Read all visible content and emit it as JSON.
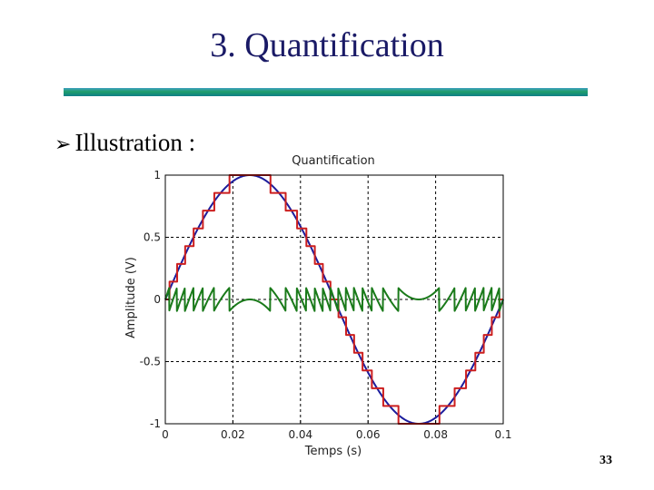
{
  "slide": {
    "title": "3. Quantification",
    "bullet_label": "Illustration :",
    "bullet_icon": "arrow-bullet-icon",
    "page_number": "33"
  },
  "chart_data": {
    "type": "line",
    "title": "Quantification",
    "xlabel": "Temps (s)",
    "ylabel": "Amplitude (V)",
    "xlim": [
      0,
      0.1
    ],
    "ylim": [
      -1,
      1
    ],
    "x_ticks": [
      0,
      0.02,
      0.04,
      0.06,
      0.08,
      0.1
    ],
    "x_tick_labels": [
      "0",
      "0.02",
      "0.04",
      "0.06",
      "0.08",
      "0.1"
    ],
    "y_ticks": [
      -1,
      -0.5,
      0,
      0.5,
      1
    ],
    "y_tick_labels": [
      "-1",
      "-0.5",
      "0",
      "0.5",
      "1"
    ],
    "grid": true,
    "grid_style": "dotted",
    "series": [
      {
        "color": "#1c1c9c",
        "style": "line",
        "description_key": "sine",
        "signal": {
          "kind": "sine",
          "amplitude": 1,
          "frequency_hz": 10
        }
      },
      {
        "color": "#cc1f1f",
        "style": "step",
        "signal": {
          "kind": "quantized_sine",
          "amplitude": 1,
          "frequency_hz": 10,
          "levels_per_side": 7
        }
      },
      {
        "color": "#1a7a1a",
        "style": "line",
        "signal": {
          "kind": "quantization_error",
          "amplitude": 1,
          "frequency_hz": 10,
          "levels_per_side": 7
        }
      }
    ],
    "colors": {
      "axes": "#000000",
      "grid": "#000000",
      "text": "#222222"
    }
  }
}
